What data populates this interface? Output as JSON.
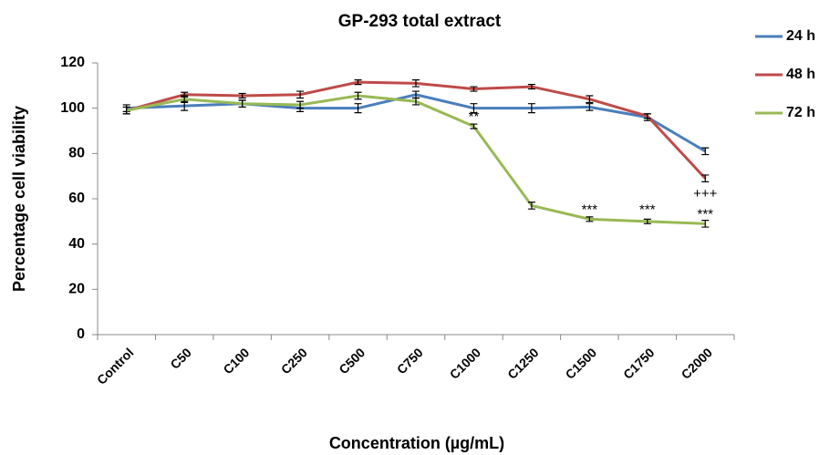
{
  "chart_data": {
    "type": "line",
    "title": "GP-293  total extract",
    "x_label": "Concentration (µg/mL)",
    "y_label": "Percentage  cell viability",
    "categories": [
      "Control",
      "C50",
      "C100",
      "C250",
      "C500",
      "C750",
      "C1000",
      "C1250",
      "C1500",
      "C1750",
      "C2000"
    ],
    "series": [
      {
        "name": "24 h",
        "color": "#4a7ebb",
        "values": [
          100,
          101,
          102,
          100,
          100,
          106,
          100,
          100,
          100.5,
          96,
          81
        ],
        "errors": [
          1.5,
          2,
          1.5,
          1.5,
          2,
          1.5,
          2,
          2,
          1.5,
          1.5,
          1.5
        ]
      },
      {
        "name": "48 h",
        "color": "#be4b48",
        "values": [
          99,
          106,
          105.5,
          106,
          111.5,
          111,
          108.5,
          109.5,
          104,
          96.5,
          69
        ],
        "errors": [
          1.5,
          1,
          1,
          1.5,
          1,
          1.5,
          1,
          1,
          1.5,
          1,
          1.5
        ]
      },
      {
        "name": "72 h",
        "color": "#98b954",
        "values": [
          99,
          104,
          102,
          101.5,
          105.5,
          103,
          92,
          57,
          51,
          50,
          49
        ],
        "errors": [
          1.5,
          1.5,
          1.5,
          1.5,
          1.5,
          1.5,
          1,
          1.5,
          1,
          1,
          1.5
        ]
      }
    ],
    "ylim": [
      0,
      120
    ],
    "yticks": [
      0,
      20,
      40,
      60,
      80,
      100,
      120
    ],
    "annotations": [
      {
        "text": "**",
        "x": "C1000",
        "y": 96
      },
      {
        "text": "***",
        "x": "C1500",
        "y": 55
      },
      {
        "text": "***",
        "x": "C1750",
        "y": 55
      },
      {
        "text": "+++",
        "x": "C2000",
        "y": 62
      },
      {
        "text": "***",
        "x": "C2000",
        "y": 53
      }
    ],
    "legend": "right"
  }
}
